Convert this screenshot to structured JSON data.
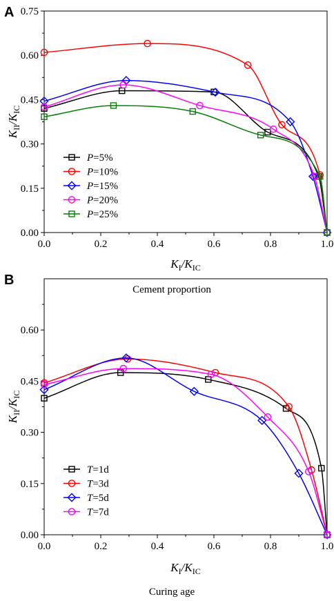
{
  "chart_data": [
    {
      "type": "line",
      "panel_label": "A",
      "caption": "Cement proportion",
      "xlabel": "K_I/K_IC",
      "ylabel": "K_II/K_IC",
      "xlim": [
        0,
        1
      ],
      "ylim": [
        0,
        0.75
      ],
      "xticks": [
        "0.0",
        "0.2",
        "0.4",
        "0.6",
        "0.8",
        "1.0"
      ],
      "yticks": [
        "0.00",
        "0.15",
        "0.30",
        "0.45",
        "0.60",
        "0.75"
      ],
      "grid": false,
      "legend_position": "lower-left",
      "series": [
        {
          "name": "P=5%",
          "legend_var": "P",
          "legend_val": "=5%",
          "color": "#000000",
          "marker": "square",
          "x": [
            0,
            0.275,
            0.6,
            0.79,
            0.97,
            1.0
          ],
          "y": [
            0.42,
            0.48,
            0.476,
            0.34,
            0.19,
            0
          ]
        },
        {
          "name": "P=10%",
          "legend_var": "P",
          "legend_val": "=10%",
          "color": "#ff0000",
          "marker": "circle",
          "x": [
            0,
            0.365,
            0.72,
            0.84,
            0.975,
            1.0
          ],
          "y": [
            0.61,
            0.64,
            0.567,
            0.365,
            0.195,
            0
          ]
        },
        {
          "name": "P=15%",
          "legend_var": "P",
          "legend_val": "=15%",
          "color": "#0000ff",
          "marker": "diamond",
          "x": [
            0,
            0.29,
            0.605,
            0.87,
            0.95,
            1.0
          ],
          "y": [
            0.445,
            0.515,
            0.475,
            0.375,
            0.19,
            0
          ]
        },
        {
          "name": "P=20%",
          "legend_var": "P",
          "legend_val": "=20%",
          "color": "#ff00ff",
          "marker": "circle",
          "x": [
            0,
            0.28,
            0.55,
            0.81,
            0.955,
            1.0
          ],
          "y": [
            0.425,
            0.5,
            0.43,
            0.35,
            0.19,
            0
          ]
        },
        {
          "name": "P=25%",
          "legend_var": "P",
          "legend_val": "=25%",
          "color": "#008000",
          "marker": "square",
          "x": [
            0,
            0.245,
            0.525,
            0.765,
            0.975,
            1.0
          ],
          "y": [
            0.392,
            0.43,
            0.41,
            0.33,
            0.19,
            0
          ]
        }
      ]
    },
    {
      "type": "line",
      "panel_label": "B",
      "caption": "Curing age",
      "xlabel": "K_I/K_IC",
      "ylabel": "K_II/K_IC",
      "xlim": [
        0,
        1
      ],
      "ylim": [
        0,
        0.75
      ],
      "xticks": [
        "0.0",
        "0.2",
        "0.4",
        "0.6",
        "0.8",
        "1.0"
      ],
      "yticks": [
        "0.00",
        "0.15",
        "0.30",
        "0.45",
        "0.60"
      ],
      "grid": false,
      "legend_position": "lower-left",
      "series": [
        {
          "name": "T=1d",
          "legend_var": "T",
          "legend_val": "=1d",
          "color": "#000000",
          "marker": "square",
          "x": [
            0,
            0.27,
            0.58,
            0.855,
            0.98,
            1.0
          ],
          "y": [
            0.4,
            0.475,
            0.455,
            0.37,
            0.195,
            0
          ]
        },
        {
          "name": "T=3d",
          "legend_var": "T",
          "legend_val": "=3d",
          "color": "#ff0000",
          "marker": "circle",
          "x": [
            0,
            0.295,
            0.605,
            0.865,
            0.945,
            1.0
          ],
          "y": [
            0.445,
            0.515,
            0.475,
            0.375,
            0.19,
            0
          ]
        },
        {
          "name": "T=5d",
          "legend_var": "T",
          "legend_val": "=5d",
          "color": "#0000ff",
          "marker": "diamond",
          "x": [
            0,
            0.29,
            0.53,
            0.77,
            0.9,
            1.0
          ],
          "y": [
            0.425,
            0.518,
            0.42,
            0.335,
            0.18,
            0
          ]
        },
        {
          "name": "T=7d",
          "legend_var": "T",
          "legend_val": "=7d",
          "color": "#ff00ff",
          "marker": "circle",
          "x": [
            0,
            0.28,
            0.59,
            0.79,
            0.935,
            1.0
          ],
          "y": [
            0.44,
            0.487,
            0.47,
            0.345,
            0.185,
            0
          ]
        }
      ]
    }
  ]
}
